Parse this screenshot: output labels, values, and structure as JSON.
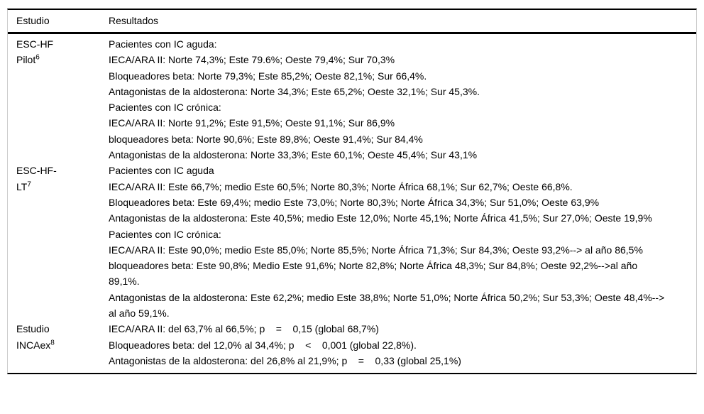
{
  "header": {
    "estudio": "Estudio",
    "resultados": "Resultados"
  },
  "studies": [
    {
      "name_line1": "ESC-HF",
      "name_line2": "Pilot",
      "ref": "6",
      "lines": [
        "Pacientes con IC aguda:",
        "IECA/ARA II: Norte 74,3%; Este 79.6%; Oeste 79,4%; Sur 70,3%",
        "Bloqueadores beta: Norte 79,3%; Este 85,2%; Oeste 82,1%; Sur 66,4%.",
        "Antagonistas de la aldosterona: Norte 34,3%; Este 65,2%; Oeste 32,1%; Sur 45,3%.",
        "Pacientes con IC crónica:",
        "IECA/ARA II: Norte 91,2%; Este 91,5%; Oeste 91,1%; Sur 86,9%",
        "bloqueadores beta: Norte 90,6%; Este 89,8%; Oeste 91,4%; Sur 84,4%",
        "Antagonistas de la aldosterona: Norte 33,3%; Este 60,1%; Oeste 45,4%; Sur 43,1%"
      ]
    },
    {
      "name_line1": "ESC-HF-",
      "name_line2": "LT",
      "ref": "7",
      "lines": [
        "Pacientes con IC aguda",
        "IECA/ARA II: Este 66,7%; medio Este 60,5%; Norte 80,3%; Norte África 68,1%; Sur 62,7%; Oeste 66,8%.",
        "Bloqueadores beta: Este 69,4%; medio Este 73,0%; Norte 80,3%; Norte África 34,3%; Sur 51,0%; Oeste 63,9%",
        "Antagonistas de la aldosterona: Este 40,5%; medio Este 12,0%; Norte 45,1%; Norte África 41,5%; Sur 27,0%; Oeste 19,9%",
        "Pacientes con IC crónica:",
        "IECA/ARA II: Este 90,0%; medio Este 85,0%; Norte 85,5%; Norte África 71,3%; Sur 84,3%; Oeste 93,2%--> al año 86,5%",
        "bloqueadores beta: Este 90,8%; Medio Este 91,6%; Norte 82,8%; Norte África 48,3%; Sur 84,8%; Oeste 92,2%-->al año 89,1%.",
        "Antagonistas de la aldosterona: Este 62,2%; medio Este 38,8%; Norte 51,0%; Norte África 50,2%; Sur 53,3%; Oeste 48,4%--> al año 59,1%."
      ]
    },
    {
      "name_line1": "Estudio",
      "name_line2": "INCAex",
      "ref": "8",
      "lines": [
        "IECA/ARA II: del 63,7% al 66,5%; p    =    0,15 (global 68,7%)",
        "Bloqueadores beta: del 12,0% al 34,4%; p    <    0,001 (global 22,8%).",
        "Antagonistas de la aldosterona: del 26,8% al 21,9%; p    =    0,33 (global 25,1%)"
      ]
    }
  ]
}
